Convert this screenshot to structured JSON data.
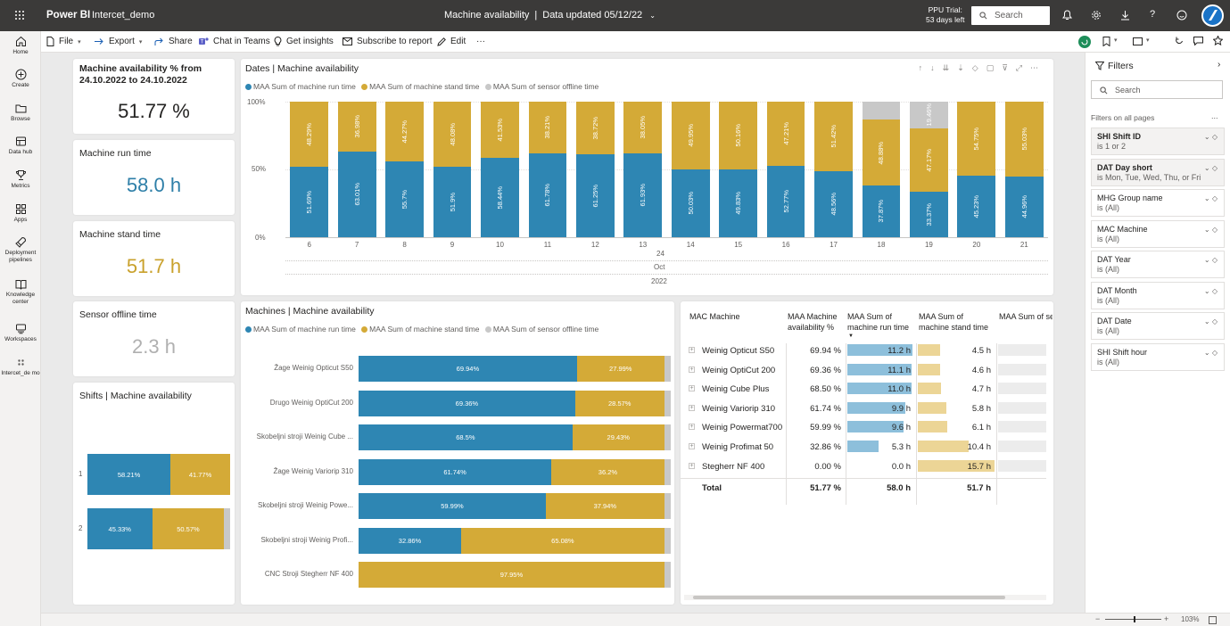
{
  "app": {
    "brand": "Power BI",
    "workspace": "Intercet_demo",
    "report_title": "Machine availability",
    "separator": "|",
    "data_updated": "Data updated 05/12/22",
    "trial_line1": "PPU Trial:",
    "trial_line2": "53 days left",
    "search_placeholder": "Search"
  },
  "toolbar": {
    "file": "File",
    "export": "Export",
    "share": "Share",
    "chat": "Chat in Teams",
    "insights": "Get insights",
    "subscribe": "Subscribe to report",
    "edit": "Edit",
    "more": "···"
  },
  "nav": [
    {
      "label": "Home",
      "icon": "home-icon"
    },
    {
      "label": "Create",
      "icon": "plus-circle-icon"
    },
    {
      "label": "Browse",
      "icon": "folder-icon"
    },
    {
      "label": "Data hub",
      "icon": "database-icon"
    },
    {
      "label": "Metrics",
      "icon": "trophy-icon"
    },
    {
      "label": "Apps",
      "icon": "apps-icon"
    },
    {
      "label": "Deployment pipelines",
      "icon": "rocket-icon"
    },
    {
      "label": "Knowledge center",
      "icon": "book-icon"
    },
    {
      "label": "Workspaces",
      "icon": "layers-icon"
    },
    {
      "label": "Intercet_de mo",
      "icon": "workspace-icon"
    }
  ],
  "kpis": {
    "availability_title": "Machine availability % from 24.10.2022 to 24.10.2022",
    "availability_value": "51.77 %",
    "run_title": "Machine run time",
    "run_value": "58.0 h",
    "stand_title": "Machine stand time",
    "stand_value": "51.7 h",
    "offline_title": "Sensor offline time",
    "offline_value": "2.3 h"
  },
  "legend": {
    "run": "MAA Sum of machine run time",
    "stand": "MAA Sum of machine stand time",
    "offline": "MAA Sum of sensor offline time"
  },
  "colors": {
    "run": "#2e86b3",
    "stand": "#d4aa37",
    "offline": "#c8c8c8"
  },
  "dates_chart": {
    "title": "Dates | Machine availability",
    "x_month": "Oct",
    "x_year_top": "24",
    "x_year": "2022",
    "y_ticks": [
      "100%",
      "50%",
      "0%"
    ]
  },
  "machines_chart": {
    "title": "Machines | Machine availability"
  },
  "shifts_chart": {
    "title": "Shifts | Machine availability"
  },
  "chart_data": [
    {
      "type": "bar",
      "stacked": true,
      "orientation": "vertical",
      "title": "Dates | Machine availability",
      "categories": [
        "6",
        "7",
        "8",
        "9",
        "10",
        "11",
        "12",
        "13",
        "14",
        "15",
        "16",
        "17",
        "18",
        "19",
        "20",
        "21"
      ],
      "series": [
        {
          "name": "MAA Sum of machine run time",
          "values": [
            51.69,
            63.01,
            55.7,
            51.9,
            58.44,
            61.78,
            61.25,
            61.93,
            50.03,
            49.83,
            52.77,
            48.56,
            37.87,
            33.37,
            45.23,
            44.96
          ],
          "labels": [
            "51.69%",
            "63.01%",
            "55.7%",
            "51.9%",
            "58.44%",
            "61.78%",
            "61.25%",
            "61.93%",
            "50.03%",
            "49.83%",
            "52.77%",
            "48.56%",
            "37.87%",
            "33.37%",
            "45.23%",
            "44.96%"
          ]
        },
        {
          "name": "MAA Sum of machine stand time",
          "values": [
            48.29,
            36.98,
            44.27,
            48.08,
            41.53,
            38.21,
            38.72,
            38.05,
            49.95,
            50.16,
            47.21,
            51.42,
            48.88,
            47.17,
            54.75,
            55.03
          ],
          "labels": [
            "48.29%",
            "36.98%",
            "44.27%",
            "48.08%",
            "41.53%",
            "38.21%",
            "38.72%",
            "38.05%",
            "49.95%",
            "50.16%",
            "47.21%",
            "51.42%",
            "48.88%",
            "47.17%",
            "54.75%",
            "55.03%"
          ]
        },
        {
          "name": "MAA Sum of sensor offline time",
          "values": [
            0,
            0,
            0,
            0,
            0,
            0,
            0,
            0,
            0,
            0,
            0,
            0,
            13.25,
            19.46,
            0,
            0
          ],
          "labels": [
            "",
            "",
            "",
            "",
            "",
            "",
            "",
            "",
            "",
            "",
            "",
            "",
            "",
            "19.46%",
            "",
            ""
          ]
        }
      ],
      "ylim": [
        0,
        100
      ],
      "xlabel": "",
      "ylabel": ""
    },
    {
      "type": "bar",
      "stacked": true,
      "orientation": "horizontal",
      "title": "Machines | Machine availability",
      "categories": [
        "Žage Weinig Opticut S50",
        "Drugo Weinig OptiCut 200",
        "Skobeljni stroji Weinig Cube ...",
        "Žage Weinig Variorip 310",
        "Skobeljni stroji Weinig Powe...",
        "Skobeljni stroji Weinig Profi...",
        "CNC Stroji Stegherr NF 400"
      ],
      "series": [
        {
          "name": "MAA Sum of machine run time",
          "values": [
            69.94,
            69.36,
            68.5,
            61.74,
            59.99,
            32.86,
            0
          ],
          "labels": [
            "69.94%",
            "69.36%",
            "68.5%",
            "61.74%",
            "59.99%",
            "32.86%",
            ""
          ]
        },
        {
          "name": "MAA Sum of machine stand time",
          "values": [
            27.99,
            28.57,
            29.43,
            36.2,
            37.94,
            65.08,
            97.95
          ],
          "labels": [
            "27.99%",
            "28.57%",
            "29.43%",
            "36.2%",
            "37.94%",
            "65.08%",
            "97.95%"
          ]
        },
        {
          "name": "MAA Sum of sensor offline time",
          "values": [
            2.07,
            2.07,
            2.07,
            2.06,
            2.07,
            2.06,
            2.05
          ],
          "labels": [
            "",
            "",
            "",
            "",
            "",
            "",
            ""
          ]
        }
      ],
      "xlim": [
        0,
        100
      ]
    },
    {
      "type": "bar",
      "stacked": true,
      "orientation": "horizontal",
      "title": "Shifts | Machine availability",
      "categories": [
        "1",
        "2"
      ],
      "series": [
        {
          "name": "MAA Sum of machine run time",
          "values": [
            58.21,
            45.33
          ],
          "labels": [
            "58.21%",
            "45.33%"
          ]
        },
        {
          "name": "MAA Sum of machine stand time",
          "values": [
            41.77,
            50.57
          ],
          "labels": [
            "41.77%",
            "50.57%"
          ]
        },
        {
          "name": "MAA Sum of sensor offline time",
          "values": [
            0.02,
            4.1
          ],
          "labels": [
            "",
            ""
          ]
        }
      ],
      "xlim": [
        0,
        100
      ]
    }
  ],
  "table": {
    "headers": [
      "MAC Machine",
      "MAA Machine availability %",
      "MAA Sum of machine run time",
      "MAA Sum of machine stand time",
      "MAA Sum of sensor offline"
    ],
    "rows": [
      {
        "name": "Weinig Opticut S50",
        "avail": "69.94 %",
        "run": "11.2 h",
        "run_v": 11.2,
        "stand": "4.5 h",
        "stand_v": 4.5
      },
      {
        "name": "Weinig OptiCut 200",
        "avail": "69.36 %",
        "run": "11.1 h",
        "run_v": 11.1,
        "stand": "4.6 h",
        "stand_v": 4.6
      },
      {
        "name": "Weinig Cube Plus",
        "avail": "68.50 %",
        "run": "11.0 h",
        "run_v": 11.0,
        "stand": "4.7 h",
        "stand_v": 4.7
      },
      {
        "name": "Weinig Variorip 310",
        "avail": "61.74 %",
        "run": "9.9 h",
        "run_v": 9.9,
        "stand": "5.8 h",
        "stand_v": 5.8
      },
      {
        "name": "Weinig Powermat700",
        "avail": "59.99 %",
        "run": "9.6 h",
        "run_v": 9.6,
        "stand": "6.1 h",
        "stand_v": 6.1
      },
      {
        "name": "Weinig Profimat 50",
        "avail": "32.86 %",
        "run": "5.3 h",
        "run_v": 5.3,
        "stand": "10.4 h",
        "stand_v": 10.4
      },
      {
        "name": "Stegherr NF 400",
        "avail": "0.00 %",
        "run": "0.0 h",
        "run_v": 0,
        "stand": "15.7 h",
        "stand_v": 15.7
      }
    ],
    "total": {
      "label": "Total",
      "avail": "51.77 %",
      "run": "58.0 h",
      "stand": "51.7 h"
    }
  },
  "filters": {
    "title": "Filters",
    "search_placeholder": "Search",
    "section": "Filters on all pages",
    "more": "...",
    "items": [
      {
        "name": "SHI Shift ID",
        "value": "is 1 or 2",
        "active": true
      },
      {
        "name": "DAT Day short",
        "value": "is Mon, Tue, Wed, Thu, or Fri",
        "active": true
      },
      {
        "name": "MHG Group name",
        "value": "is (All)",
        "active": false
      },
      {
        "name": "MAC Machine",
        "value": "is (All)",
        "active": false
      },
      {
        "name": "DAT Year",
        "value": "is (All)",
        "active": false
      },
      {
        "name": "DAT Month",
        "value": "is (All)",
        "active": false
      },
      {
        "name": "DAT Date",
        "value": "is (All)",
        "active": false
      },
      {
        "name": "SHI Shift hour",
        "value": "is (All)",
        "active": false
      }
    ]
  },
  "status": {
    "zoom": "103%"
  }
}
